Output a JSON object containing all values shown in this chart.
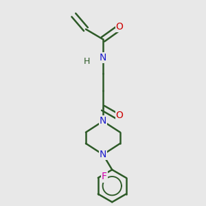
{
  "bg_color": "#e8e8e8",
  "bond_color": "#2d5a27",
  "bond_width": 1.8,
  "N_color": "#1a1acc",
  "O_color": "#cc0000",
  "F_color": "#cc00aa",
  "H_color": "#2d5a27",
  "font_size": 10,
  "fig_size": [
    3.0,
    3.0
  ],
  "dpi": 100,
  "xlim": [
    0,
    10
  ],
  "ylim": [
    0,
    10
  ]
}
